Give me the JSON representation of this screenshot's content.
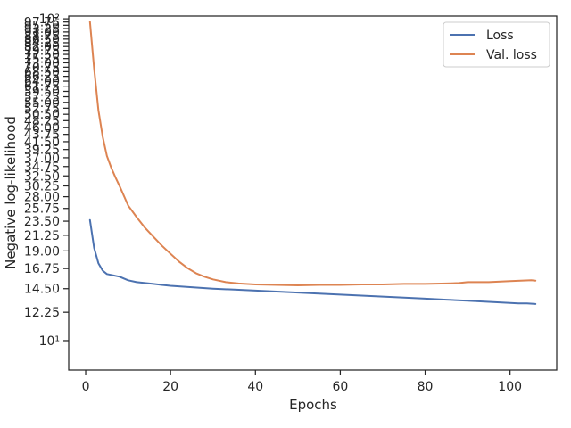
{
  "chart_data": {
    "type": "line",
    "xlabel": "Epochs",
    "ylabel": "Negative log-likelihood",
    "yscale": "log",
    "xlim": [
      -4,
      111
    ],
    "ylim": [
      8.1,
      102
    ],
    "grid": false,
    "legend_position": "top-right",
    "x_ticks": [
      0,
      20,
      40,
      60,
      80,
      100
    ],
    "x_tick_labels": [
      "0",
      "20",
      "40",
      "60",
      "80",
      "100"
    ],
    "y_ticks": [
      10,
      12.25,
      14.5,
      16.75,
      19.0,
      21.25,
      23.5,
      25.75,
      28.0,
      30.25,
      32.5,
      34.75,
      37.0,
      39.25,
      41.5,
      43.75,
      46.0,
      48.25,
      50.5,
      52.75,
      55.0,
      57.25,
      59.5,
      61.75,
      64.0,
      66.25,
      68.5,
      70.75,
      73.0,
      75.25,
      77.5,
      79.75,
      82.0,
      84.25,
      86.5,
      88.75,
      91.0,
      93.25,
      95.5,
      97.75,
      100
    ],
    "y_tick_labels": [
      "10¹",
      "12.25",
      "14.50",
      "16.75",
      "19.00",
      "21.25",
      "23.50",
      "25.75",
      "28.00",
      "30.25",
      "32.50",
      "34.75",
      "37.00",
      "39.25",
      "41.50",
      "43.75",
      "46.00",
      "48.25",
      "50.50",
      "52.75",
      "55.00",
      "57.25",
      "59.50",
      "61.75",
      "64.00",
      "66.25",
      "68.50",
      "70.75",
      "73.00",
      "75.25",
      "77.50",
      "79.75",
      "82.00",
      "84.25",
      "86.50",
      "88.75",
      "91.00",
      "93.25",
      "95.50",
      "97.75",
      "10²"
    ],
    "series": [
      {
        "name": "Loss",
        "color": "#4c72b0",
        "x": [
          1,
          2,
          3,
          4,
          5,
          6,
          7,
          8,
          9,
          10,
          12,
          14,
          16,
          18,
          20,
          25,
          30,
          35,
          40,
          45,
          50,
          55,
          60,
          65,
          70,
          75,
          80,
          85,
          90,
          95,
          100,
          102,
          104,
          106
        ],
        "y": [
          23.7,
          19.4,
          17.4,
          16.5,
          16.1,
          16.0,
          15.9,
          15.8,
          15.6,
          15.4,
          15.2,
          15.1,
          15.0,
          14.9,
          14.8,
          14.65,
          14.5,
          14.4,
          14.3,
          14.2,
          14.1,
          14.0,
          13.9,
          13.8,
          13.7,
          13.6,
          13.5,
          13.4,
          13.3,
          13.2,
          13.1,
          13.05,
          13.05,
          13.0
        ]
      },
      {
        "name": "Val. loss",
        "color": "#dd8452",
        "x": [
          1,
          2,
          3,
          4,
          5,
          6,
          7,
          8,
          10,
          12,
          14,
          16,
          18,
          20,
          22,
          24,
          26,
          28,
          30,
          33,
          36,
          40,
          45,
          50,
          55,
          60,
          65,
          70,
          75,
          80,
          85,
          88,
          90,
          95,
          100,
          105,
          106
        ],
        "y": [
          98,
          70,
          52,
          43,
          37.5,
          34.5,
          32.2,
          30.2,
          26.3,
          24.2,
          22.4,
          21.0,
          19.7,
          18.6,
          17.6,
          16.8,
          16.2,
          15.8,
          15.5,
          15.2,
          15.05,
          14.95,
          14.9,
          14.85,
          14.9,
          14.9,
          14.95,
          14.95,
          15.0,
          15.0,
          15.05,
          15.1,
          15.2,
          15.2,
          15.3,
          15.4,
          15.35
        ]
      }
    ]
  }
}
